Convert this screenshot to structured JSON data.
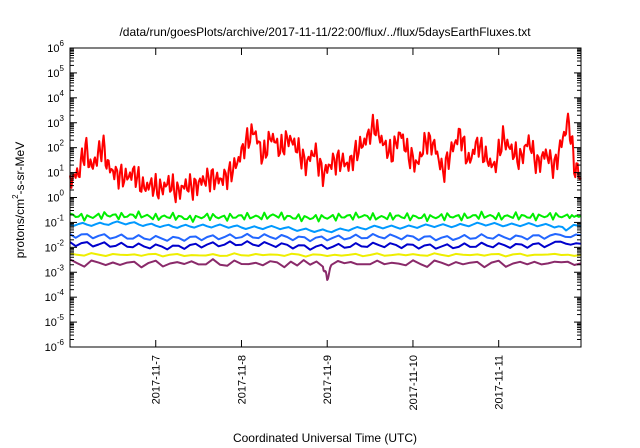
{
  "chart_data": {
    "type": "line",
    "title": "/data/run/goesPlots/archive/2017-11-11/22:00/flux/../flux/5daysEarthFluxes.txt",
    "xlabel": "Coordinated Universal Time (UTC)",
    "ylabel_parts": {
      "prefix": "protons/cm",
      "sup": "2",
      "suffix": "-s-sr-MeV"
    },
    "y_scale": "log",
    "ylim_exp": [
      -6,
      6
    ],
    "y_tick_labels": [
      {
        "base": "10",
        "exp": "6"
      },
      {
        "base": "10",
        "exp": "5"
      },
      {
        "base": "10",
        "exp": "4"
      },
      {
        "base": "10",
        "exp": "3"
      },
      {
        "base": "10",
        "exp": "2"
      },
      {
        "base": "10",
        "exp": "1"
      },
      {
        "base": "10",
        "exp": "0"
      },
      {
        "base": "10",
        "exp": "-1"
      },
      {
        "base": "10",
        "exp": "-2"
      },
      {
        "base": "10",
        "exp": "-3"
      },
      {
        "base": "10",
        "exp": "-4"
      },
      {
        "base": "10",
        "exp": "-5"
      },
      {
        "base": "10",
        "exp": "-6"
      }
    ],
    "x_ticks": [
      "2017-11-7",
      "2017-11-8",
      "2017-11-9",
      "2017-11-10",
      "2017-11-11"
    ],
    "x_range_days": [
      6.0,
      11.96
    ],
    "x_tick_days": [
      7,
      8,
      9,
      10,
      11
    ],
    "grid": false,
    "legend": "none",
    "series": [
      {
        "color": "#ff0000",
        "points": [
          [
            6.0,
            0.7
          ],
          [
            6.1,
            1.0
          ],
          [
            6.18,
            2.0
          ],
          [
            6.25,
            1.2
          ],
          [
            6.3,
            1.5
          ],
          [
            6.38,
            2.1
          ],
          [
            6.45,
            1.2
          ],
          [
            6.55,
            0.9
          ],
          [
            6.65,
            0.8
          ],
          [
            6.75,
            1.0
          ],
          [
            6.85,
            0.4
          ],
          [
            6.95,
            0.5
          ],
          [
            7.05,
            0.3
          ],
          [
            7.15,
            0.6
          ],
          [
            7.25,
            0.2
          ],
          [
            7.35,
            0.5
          ],
          [
            7.45,
            0.4
          ],
          [
            7.55,
            0.7
          ],
          [
            7.65,
            0.8
          ],
          [
            7.75,
            0.7
          ],
          [
            7.85,
            0.9
          ],
          [
            7.95,
            1.4
          ],
          [
            8.05,
            2.2
          ],
          [
            8.15,
            2.7
          ],
          [
            8.25,
            1.6
          ],
          [
            8.35,
            2.5
          ],
          [
            8.45,
            1.9
          ],
          [
            8.55,
            2.4
          ],
          [
            8.65,
            2.0
          ],
          [
            8.75,
            1.3
          ],
          [
            8.85,
            1.9
          ],
          [
            8.95,
            0.9
          ],
          [
            9.05,
            1.4
          ],
          [
            9.15,
            1.5
          ],
          [
            9.25,
            1.3
          ],
          [
            9.35,
            1.9
          ],
          [
            9.45,
            2.3
          ],
          [
            9.55,
            2.9
          ],
          [
            9.65,
            2.2
          ],
          [
            9.75,
            1.7
          ],
          [
            9.85,
            2.6
          ],
          [
            9.95,
            1.7
          ],
          [
            10.05,
            1.3
          ],
          [
            10.15,
            2.3
          ],
          [
            10.25,
            2.1
          ],
          [
            10.35,
            1.0
          ],
          [
            10.45,
            1.9
          ],
          [
            10.55,
            2.6
          ],
          [
            10.65,
            1.4
          ],
          [
            10.75,
            2.2
          ],
          [
            10.85,
            1.6
          ],
          [
            10.95,
            1.2
          ],
          [
            11.05,
            2.4
          ],
          [
            11.15,
            1.9
          ],
          [
            11.25,
            1.5
          ],
          [
            11.35,
            2.3
          ],
          [
            11.45,
            1.3
          ],
          [
            11.55,
            1.8
          ],
          [
            11.65,
            1.2
          ],
          [
            11.75,
            2.4
          ],
          [
            11.82,
            3.1
          ],
          [
            11.88,
            1.3
          ],
          [
            11.96,
            0.8
          ]
        ]
      },
      {
        "color": "#00ee00",
        "points": [
          [
            6.0,
            -0.7
          ],
          [
            6.2,
            -0.8
          ],
          [
            6.4,
            -0.7
          ],
          [
            6.6,
            -0.75
          ],
          [
            6.8,
            -0.7
          ],
          [
            7.0,
            -0.8
          ],
          [
            7.2,
            -0.75
          ],
          [
            7.4,
            -0.85
          ],
          [
            7.6,
            -0.75
          ],
          [
            7.8,
            -0.8
          ],
          [
            8.0,
            -0.75
          ],
          [
            8.2,
            -0.78
          ],
          [
            8.4,
            -0.72
          ],
          [
            8.6,
            -0.8
          ],
          [
            8.8,
            -0.82
          ],
          [
            9.0,
            -0.8
          ],
          [
            9.2,
            -0.76
          ],
          [
            9.4,
            -0.74
          ],
          [
            9.6,
            -0.8
          ],
          [
            9.8,
            -0.76
          ],
          [
            10.0,
            -0.78
          ],
          [
            10.2,
            -0.8
          ],
          [
            10.4,
            -0.75
          ],
          [
            10.6,
            -0.78
          ],
          [
            10.8,
            -0.72
          ],
          [
            11.0,
            -0.78
          ],
          [
            11.2,
            -0.74
          ],
          [
            11.4,
            -0.78
          ],
          [
            11.6,
            -0.73
          ],
          [
            11.8,
            -0.76
          ],
          [
            11.96,
            -0.74
          ]
        ]
      },
      {
        "color": "#0099ff",
        "points": [
          [
            6.0,
            -1.1
          ],
          [
            6.3,
            -1.15
          ],
          [
            6.6,
            -1.1
          ],
          [
            6.9,
            -1.2
          ],
          [
            7.2,
            -1.25
          ],
          [
            7.5,
            -1.2
          ],
          [
            7.8,
            -1.15
          ],
          [
            8.1,
            -1.18
          ],
          [
            8.4,
            -1.12
          ],
          [
            8.7,
            -1.2
          ],
          [
            9.0,
            -1.25
          ],
          [
            9.3,
            -1.18
          ],
          [
            9.6,
            -1.14
          ],
          [
            9.9,
            -1.2
          ],
          [
            10.2,
            -1.18
          ],
          [
            10.5,
            -1.22
          ],
          [
            10.8,
            -1.16
          ],
          [
            11.1,
            -1.2
          ],
          [
            11.4,
            -1.15
          ],
          [
            11.7,
            -1.18
          ],
          [
            11.96,
            -1.15
          ]
        ]
      },
      {
        "color": "#2266ff",
        "points": [
          [
            6.0,
            -1.45
          ],
          [
            6.4,
            -1.5
          ],
          [
            6.8,
            -1.55
          ],
          [
            7.2,
            -1.6
          ],
          [
            7.6,
            -1.55
          ],
          [
            8.0,
            -1.5
          ],
          [
            8.4,
            -1.52
          ],
          [
            8.8,
            -1.6
          ],
          [
            9.2,
            -1.55
          ],
          [
            9.6,
            -1.5
          ],
          [
            10.0,
            -1.55
          ],
          [
            10.4,
            -1.58
          ],
          [
            10.8,
            -1.52
          ],
          [
            11.2,
            -1.55
          ],
          [
            11.6,
            -1.5
          ],
          [
            11.96,
            -1.52
          ]
        ]
      },
      {
        "color": "#0000cc",
        "points": [
          [
            6.0,
            -1.8
          ],
          [
            6.4,
            -1.85
          ],
          [
            6.8,
            -1.9
          ],
          [
            7.2,
            -1.95
          ],
          [
            7.6,
            -1.85
          ],
          [
            8.0,
            -1.8
          ],
          [
            8.4,
            -1.85
          ],
          [
            8.8,
            -1.95
          ],
          [
            9.2,
            -1.9
          ],
          [
            9.6,
            -1.85
          ],
          [
            10.0,
            -1.9
          ],
          [
            10.4,
            -1.92
          ],
          [
            10.8,
            -1.86
          ],
          [
            11.2,
            -1.88
          ],
          [
            11.6,
            -1.84
          ],
          [
            11.96,
            -1.86
          ]
        ]
      },
      {
        "color": "#eeee00",
        "points": [
          [
            6.0,
            -2.28
          ],
          [
            6.5,
            -2.3
          ],
          [
            7.0,
            -2.3
          ],
          [
            7.5,
            -2.32
          ],
          [
            8.0,
            -2.3
          ],
          [
            8.5,
            -2.3
          ],
          [
            9.0,
            -2.32
          ],
          [
            9.5,
            -2.3
          ],
          [
            10.0,
            -2.3
          ],
          [
            10.5,
            -2.3
          ],
          [
            11.0,
            -2.3
          ],
          [
            11.5,
            -2.3
          ],
          [
            11.96,
            -2.3
          ]
        ]
      },
      {
        "color": "#8a2a6a",
        "points": [
          [
            6.0,
            -2.62
          ],
          [
            6.5,
            -2.65
          ],
          [
            7.0,
            -2.66
          ],
          [
            7.5,
            -2.62
          ],
          [
            8.0,
            -2.65
          ],
          [
            8.5,
            -2.64
          ],
          [
            8.95,
            -2.68
          ],
          [
            9.0,
            -3.3
          ],
          [
            9.05,
            -2.66
          ],
          [
            9.5,
            -2.63
          ],
          [
            10.0,
            -2.65
          ],
          [
            10.5,
            -2.64
          ],
          [
            11.0,
            -2.66
          ],
          [
            11.5,
            -2.63
          ],
          [
            11.96,
            -2.64
          ]
        ]
      }
    ]
  }
}
